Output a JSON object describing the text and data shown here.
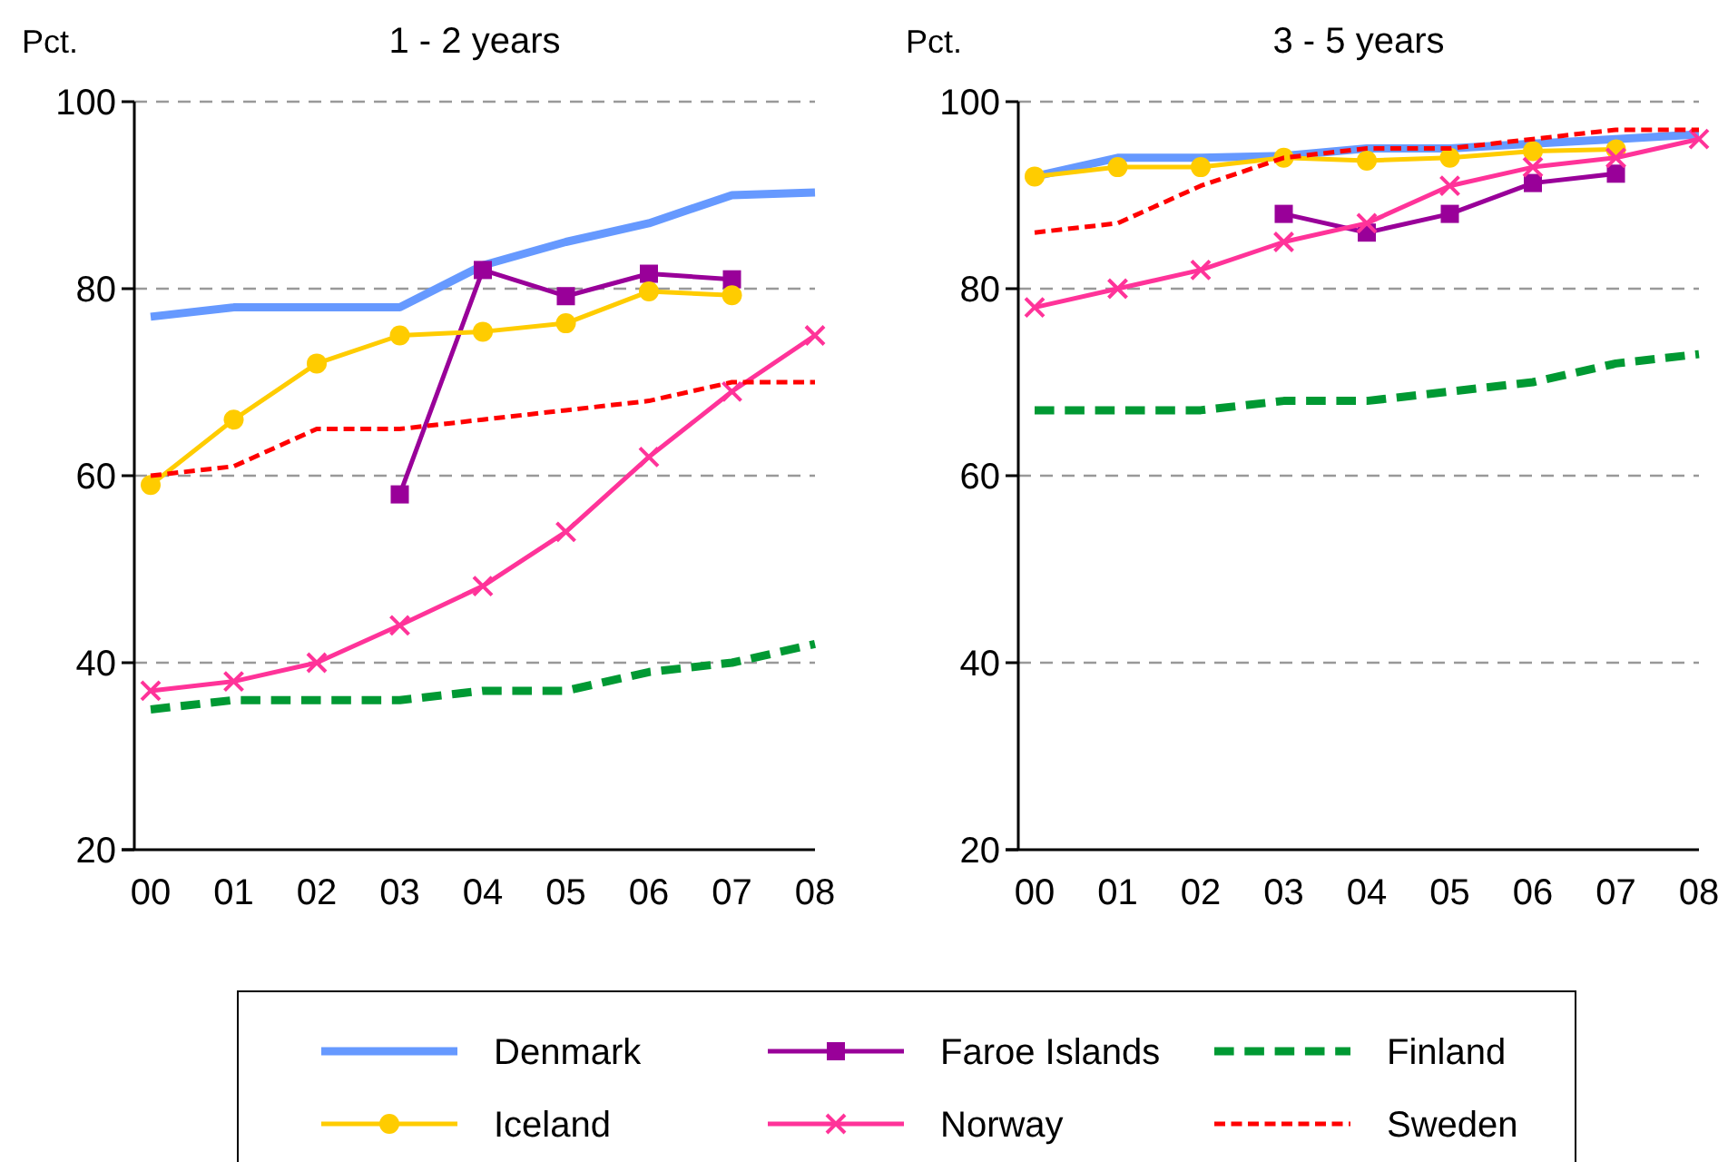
{
  "chart_data": [
    {
      "type": "line",
      "title": "1 - 2 years",
      "ylabel": "Pct.",
      "categories": [
        "00",
        "01",
        "02",
        "03",
        "04",
        "05",
        "06",
        "07",
        "08"
      ],
      "ylim": [
        20,
        100
      ],
      "yticks": [
        20,
        40,
        60,
        80,
        100
      ],
      "grid": "y",
      "legend": "bottom",
      "series": [
        {
          "name": "Denmark",
          "color": "#6699ff",
          "line_style": "solid",
          "marker": "none",
          "values": [
            77,
            78,
            78,
            78,
            82.5,
            85,
            87,
            90,
            90.3
          ]
        },
        {
          "name": "Faroe Islands",
          "color": "#990099",
          "line_style": "solid",
          "marker": "square",
          "values": [
            null,
            null,
            null,
            58,
            82,
            79.2,
            81.6,
            81,
            null
          ]
        },
        {
          "name": "Finland",
          "color": "#009933",
          "line_style": "dashed",
          "marker": "none",
          "values": [
            35,
            36,
            36,
            36,
            37,
            37,
            39,
            40,
            42
          ]
        },
        {
          "name": "Iceland",
          "color": "#ffcc00",
          "line_style": "solid",
          "marker": "circle",
          "values": [
            59,
            66,
            72,
            75,
            75.4,
            76.3,
            79.7,
            79.3,
            null
          ]
        },
        {
          "name": "Norway",
          "color": "#ff3399",
          "line_style": "solid",
          "marker": "cross",
          "values": [
            37,
            38,
            40,
            44,
            48.2,
            54,
            62,
            69,
            75
          ]
        },
        {
          "name": "Sweden",
          "color": "#ff0000",
          "line_style": "dashed",
          "marker": "none",
          "values": [
            60,
            61,
            65,
            65,
            66,
            67,
            68,
            70,
            70
          ]
        }
      ]
    },
    {
      "type": "line",
      "title": "3 - 5 years",
      "ylabel": "Pct.",
      "categories": [
        "00",
        "01",
        "02",
        "03",
        "04",
        "05",
        "06",
        "07",
        "08"
      ],
      "ylim": [
        20,
        100
      ],
      "yticks": [
        20,
        40,
        60,
        80,
        100
      ],
      "grid": "y",
      "legend": "bottom",
      "series": [
        {
          "name": "Denmark",
          "color": "#6699ff",
          "line_style": "solid",
          "marker": "none",
          "values": [
            92,
            94,
            94,
            94.2,
            95,
            95,
            95.5,
            96,
            96.5
          ]
        },
        {
          "name": "Faroe Islands",
          "color": "#990099",
          "line_style": "solid",
          "marker": "square",
          "values": [
            null,
            null,
            null,
            88,
            86,
            88,
            91.3,
            92.3,
            null
          ]
        },
        {
          "name": "Finland",
          "color": "#009933",
          "line_style": "dashed",
          "marker": "none",
          "values": [
            67,
            67,
            67,
            68,
            68,
            69,
            70,
            72,
            73
          ]
        },
        {
          "name": "Iceland",
          "color": "#ffcc00",
          "line_style": "solid",
          "marker": "circle",
          "values": [
            92,
            93,
            93,
            94,
            93.7,
            94,
            94.7,
            94.9,
            null
          ]
        },
        {
          "name": "Norway",
          "color": "#ff3399",
          "line_style": "solid",
          "marker": "cross",
          "values": [
            78,
            80,
            82,
            85,
            87,
            91,
            93,
            94,
            96
          ]
        },
        {
          "name": "Sweden",
          "color": "#ff0000",
          "line_style": "dashed",
          "marker": "none",
          "values": [
            86,
            87,
            91,
            94,
            95,
            95,
            96,
            97,
            97
          ]
        }
      ]
    }
  ]
}
